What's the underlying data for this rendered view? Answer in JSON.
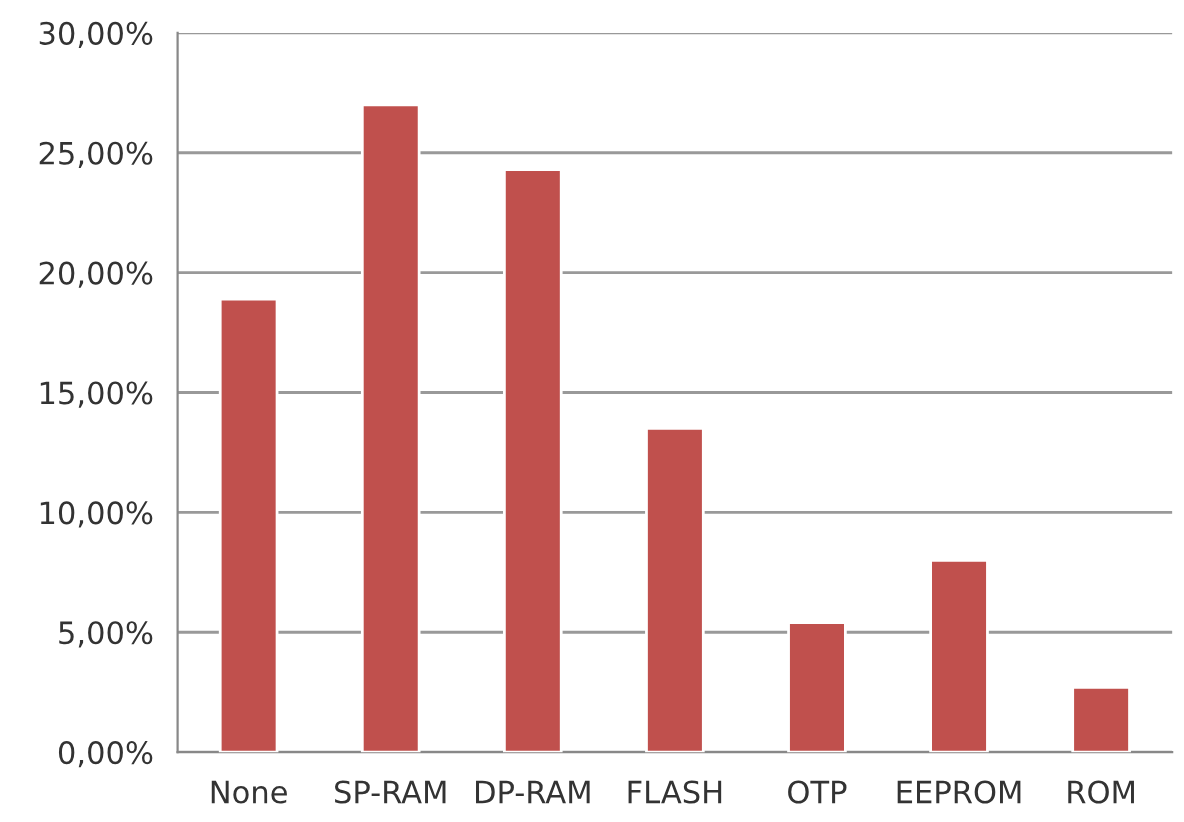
{
  "chart_data": {
    "type": "bar",
    "categories": [
      "None",
      "SP-RAM",
      "DP-RAM",
      "FLASH",
      "OTP",
      "EEPROM",
      "ROM"
    ],
    "values": [
      18.9,
      27.0,
      24.3,
      13.5,
      5.4,
      8.0,
      2.7
    ],
    "color": "#c0504d",
    "ylim": [
      0,
      30
    ],
    "yticks": [
      {
        "value": 0,
        "label": "0,00%"
      },
      {
        "value": 5,
        "label": "5,00%"
      },
      {
        "value": 10,
        "label": "10,00%"
      },
      {
        "value": 15,
        "label": "15,00%"
      },
      {
        "value": 20,
        "label": "20,00%"
      },
      {
        "value": 25,
        "label": "25,00%"
      },
      {
        "value": 30,
        "label": "30,00%"
      }
    ],
    "grid": "y",
    "legend": false
  }
}
